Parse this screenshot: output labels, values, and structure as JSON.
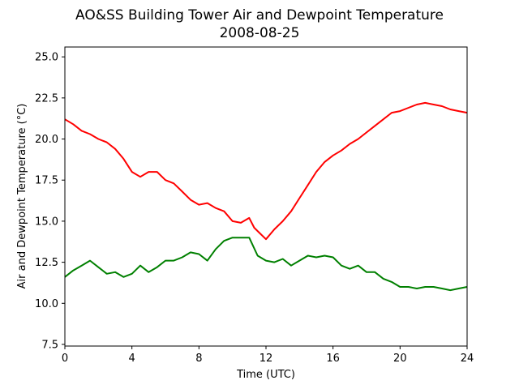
{
  "chart_data": {
    "type": "line",
    "title": "AO&SS Building Tower Air and Dewpoint Temperature",
    "subtitle": "2008-08-25",
    "xlabel": "Time (UTC)",
    "ylabel": "Air and Dewpoint Temperature (°C)",
    "xlim": [
      0,
      24
    ],
    "ylim": [
      7.4,
      25.6
    ],
    "xticks": [
      0,
      4,
      8,
      12,
      16,
      20,
      24
    ],
    "xtick_labels": [
      "0",
      "4",
      "8",
      "12",
      "16",
      "20",
      "24"
    ],
    "yticks": [
      7.5,
      10.0,
      12.5,
      15.0,
      17.5,
      20.0,
      22.5,
      25.0
    ],
    "ytick_labels": [
      "7.5",
      "10.0",
      "12.5",
      "15.0",
      "17.5",
      "20.0",
      "22.5",
      "25.0"
    ],
    "grid": false,
    "legend": false,
    "series": [
      {
        "color": "#ff0000",
        "x": [
          0,
          0.5,
          1,
          1.5,
          2,
          2.5,
          3,
          3.5,
          4,
          4.5,
          5,
          5.5,
          6,
          6.5,
          7,
          7.5,
          8,
          8.5,
          9,
          9.5,
          10,
          10.5,
          11,
          11.3,
          11.6,
          12,
          12.5,
          13,
          13.5,
          14,
          14.5,
          15,
          15.5,
          16,
          16.5,
          17,
          17.5,
          18,
          18.5,
          19,
          19.5,
          20,
          20.5,
          21,
          21.5,
          22,
          22.5,
          23,
          23.5,
          24
        ],
        "y": [
          21.2,
          20.9,
          20.5,
          20.3,
          20.0,
          19.8,
          19.4,
          18.8,
          18.0,
          17.7,
          18.0,
          18.0,
          17.5,
          17.3,
          16.8,
          16.3,
          16.0,
          16.1,
          15.8,
          15.6,
          15.0,
          14.9,
          15.2,
          14.6,
          14.3,
          13.9,
          14.5,
          15.0,
          15.6,
          16.4,
          17.2,
          18.0,
          18.6,
          19.0,
          19.3,
          19.7,
          20.0,
          20.4,
          20.8,
          21.2,
          21.6,
          21.7,
          21.9,
          22.1,
          22.2,
          22.1,
          22.0,
          21.8,
          21.7,
          21.6
        ]
      },
      {
        "color": "#008000",
        "x": [
          0,
          0.5,
          1,
          1.5,
          2,
          2.5,
          3,
          3.5,
          4,
          4.5,
          5,
          5.5,
          6,
          6.5,
          7,
          7.5,
          8,
          8.5,
          9,
          9.5,
          10,
          10.5,
          11,
          11.5,
          12,
          12.5,
          13,
          13.5,
          14,
          14.5,
          15,
          15.5,
          16,
          16.5,
          17,
          17.5,
          18,
          18.5,
          19,
          19.5,
          20,
          20.5,
          21,
          21.5,
          22,
          22.5,
          23,
          23.5,
          24
        ],
        "y": [
          11.6,
          12.0,
          12.3,
          12.6,
          12.2,
          11.8,
          11.9,
          11.6,
          11.8,
          12.3,
          11.9,
          12.2,
          12.6,
          12.6,
          12.8,
          13.1,
          13.0,
          12.6,
          13.3,
          13.8,
          14.0,
          14.0,
          14.0,
          12.9,
          12.6,
          12.5,
          12.7,
          12.3,
          12.6,
          12.9,
          12.8,
          12.9,
          12.8,
          12.3,
          12.1,
          12.3,
          11.9,
          11.9,
          11.5,
          11.3,
          11.0,
          11.0,
          10.9,
          11.0,
          11.0,
          10.9,
          10.8,
          10.9,
          11.0
        ]
      }
    ]
  }
}
